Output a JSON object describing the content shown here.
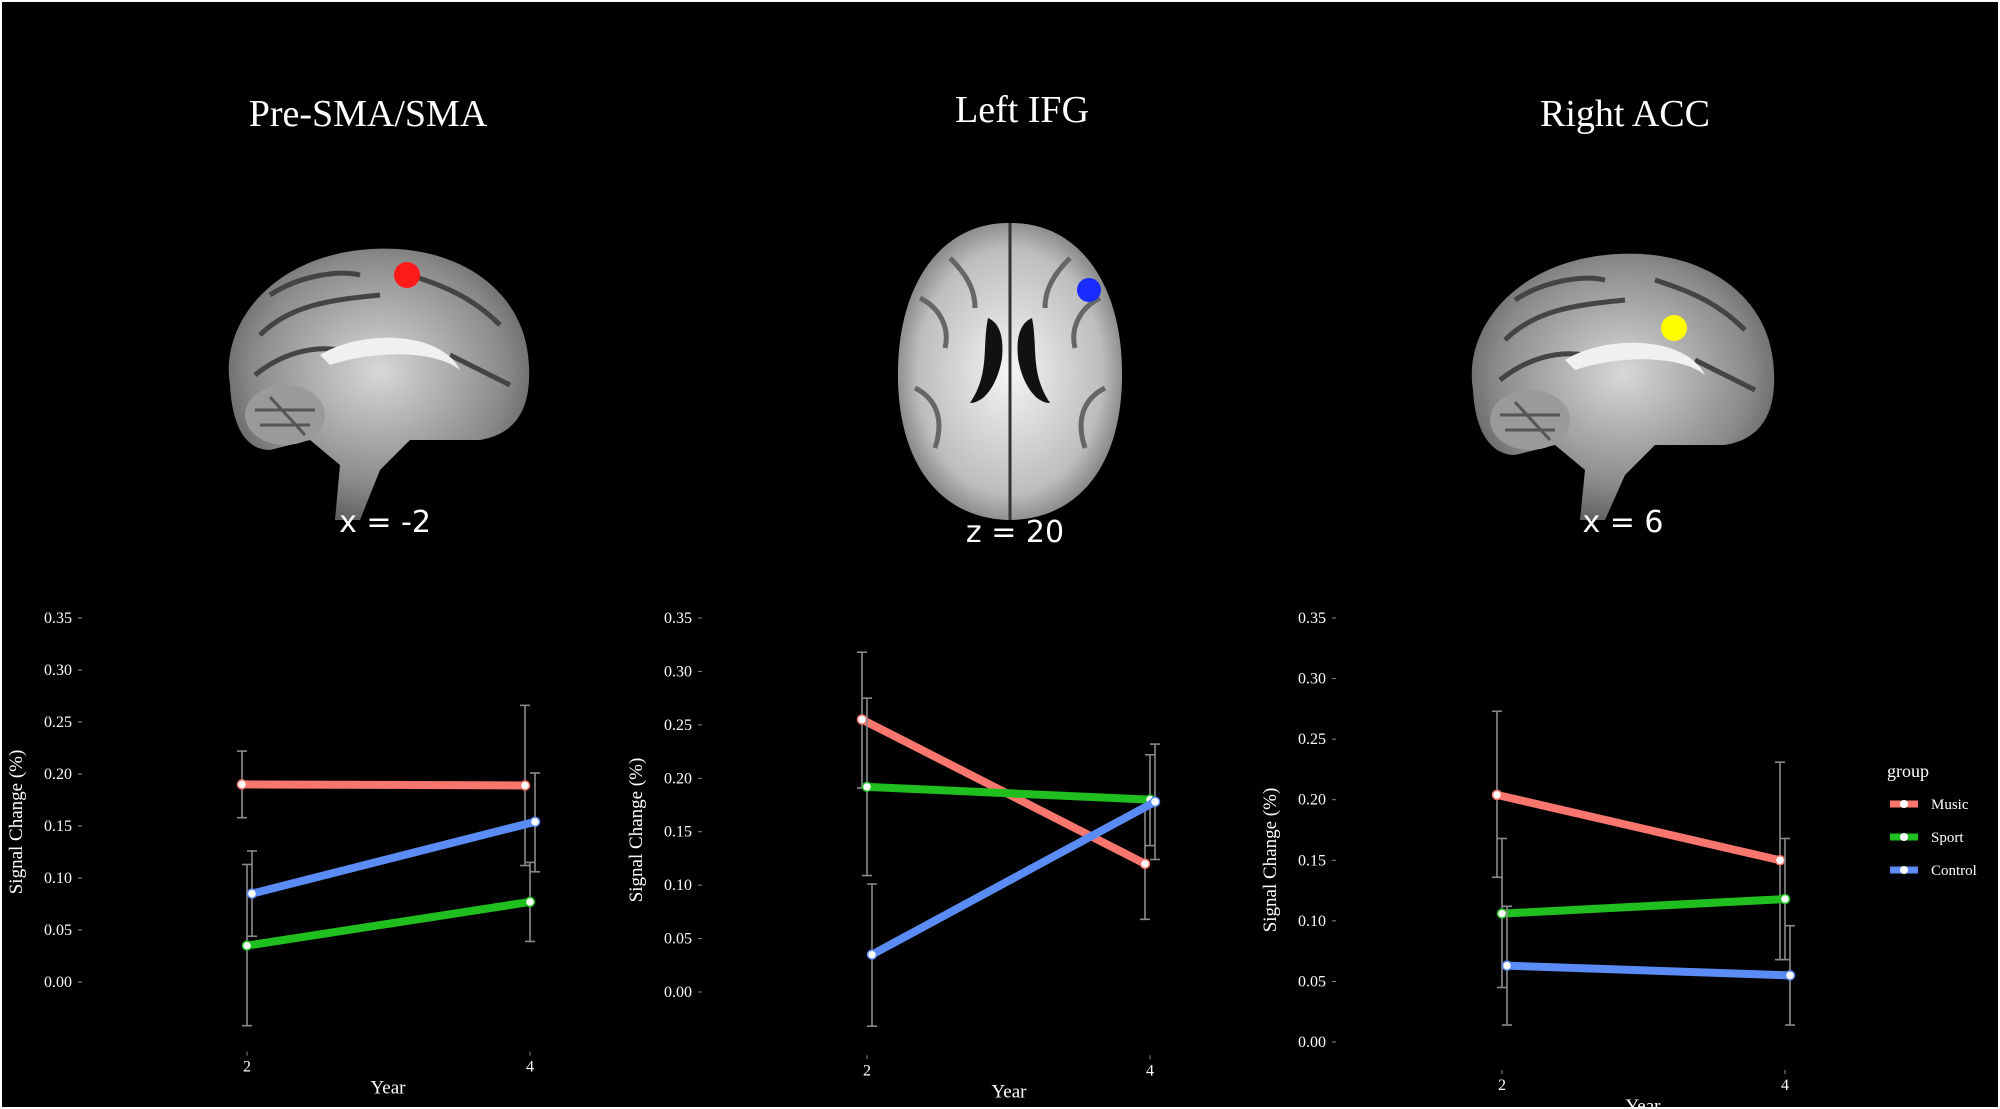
{
  "panels": [
    {
      "title": "Pre-SMA/SMA",
      "coord": "x = -2",
      "roi_color": "#ff1a1a"
    },
    {
      "title": "Left IFG",
      "coord": "z = 20",
      "roi_color": "#1a2bff"
    },
    {
      "title": "Right ACC",
      "coord": "x = 6",
      "roi_color": "#ffff00"
    }
  ],
  "legend": {
    "title": "group",
    "items": [
      {
        "label": "Music",
        "color": "#f8766d"
      },
      {
        "label": "Sport",
        "color": "#1fbf1f"
      },
      {
        "label": "Control",
        "color": "#5b8cf5"
      }
    ]
  },
  "chart_data": [
    {
      "type": "line",
      "xlabel": "Year",
      "ylabel": "Signal Change (%)",
      "x": [
        2,
        4
      ],
      "yticks": [
        "0.00",
        "0.05",
        "0.10",
        "0.15",
        "0.20",
        "0.25",
        "0.30",
        "0.35"
      ],
      "ylim": [
        -0.04,
        0.35
      ],
      "series": [
        {
          "name": "Music",
          "values": [
            0.19,
            0.189
          ],
          "err_low": [
            0.158,
            0.112
          ],
          "err_high": [
            0.222,
            0.266
          ]
        },
        {
          "name": "Sport",
          "values": [
            0.035,
            0.077
          ],
          "err_low": [
            -0.042,
            0.039
          ],
          "err_high": [
            0.113,
            0.115
          ]
        },
        {
          "name": "Control",
          "values": [
            0.085,
            0.154
          ],
          "err_low": [
            0.044,
            0.106
          ],
          "err_high": [
            0.126,
            0.201
          ]
        }
      ]
    },
    {
      "type": "line",
      "xlabel": "Year",
      "ylabel": "Signal Change (%)",
      "x": [
        2,
        4
      ],
      "yticks": [
        "0.00",
        "0.05",
        "0.10",
        "0.15",
        "0.20",
        "0.25",
        "0.30",
        "0.35"
      ],
      "ylim": [
        -0.033,
        0.35
      ],
      "series": [
        {
          "name": "Music",
          "values": [
            0.255,
            0.12
          ],
          "err_low": [
            0.191,
            0.068
          ],
          "err_high": [
            0.318,
            0.173
          ]
        },
        {
          "name": "Sport",
          "values": [
            0.192,
            0.18
          ],
          "err_low": [
            0.109,
            0.137
          ],
          "err_high": [
            0.275,
            0.222
          ]
        },
        {
          "name": "Control",
          "values": [
            0.035,
            0.178
          ],
          "err_low": [
            -0.032,
            0.124
          ],
          "err_high": [
            0.101,
            0.232
          ]
        }
      ]
    },
    {
      "type": "line",
      "xlabel": "Year",
      "ylabel": "Signal Change (%)",
      "x": [
        2,
        4
      ],
      "yticks": [
        "0.00",
        "0.05",
        "0.10",
        "0.15",
        "0.20",
        "0.25",
        "0.30",
        "0.35"
      ],
      "ylim": [
        0,
        0.35
      ],
      "series": [
        {
          "name": "Music",
          "values": [
            0.204,
            0.15
          ],
          "err_low": [
            0.136,
            0.068
          ],
          "err_high": [
            0.273,
            0.231
          ]
        },
        {
          "name": "Sport",
          "values": [
            0.106,
            0.118
          ],
          "err_low": [
            0.045,
            0.068
          ],
          "err_high": [
            0.168,
            0.168
          ]
        },
        {
          "name": "Control",
          "values": [
            0.063,
            0.055
          ],
          "err_low": [
            0.014,
            0.014
          ],
          "err_high": [
            0.112,
            0.096
          ]
        }
      ]
    }
  ]
}
